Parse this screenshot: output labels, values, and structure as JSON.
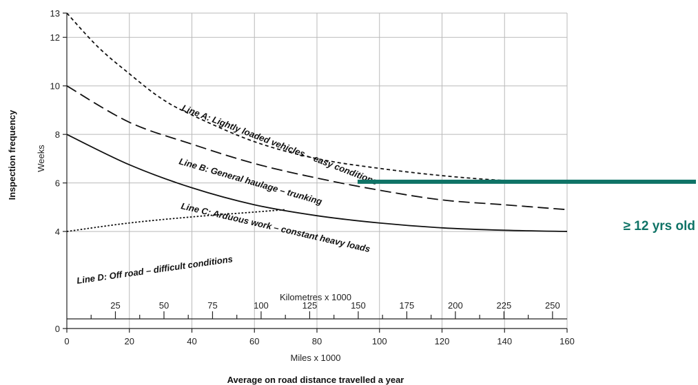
{
  "chart_data": {
    "type": "line",
    "ylabel": "Inspection frequency",
    "yunit": "Weeks",
    "xlabel": "Average on road distance travelled a year",
    "x_miles_label": "Miles x 1000",
    "x_km_label": "Kilometres x 1000",
    "xlim": [
      0,
      160
    ],
    "ylim": [
      0,
      13
    ],
    "yticks": [
      "0",
      "4",
      "6",
      "8",
      "10",
      "12",
      "13"
    ],
    "xticks_miles": [
      "0",
      "20",
      "40",
      "60",
      "80",
      "100",
      "120",
      "140",
      "160"
    ],
    "xticks_km": [
      "25",
      "50",
      "75",
      "100",
      "125",
      "150",
      "175",
      "200",
      "225",
      "250"
    ],
    "grid": true,
    "series": [
      {
        "name": "Line A: Lightly loaded vehicles – easy conditions",
        "style": "short-dash",
        "x": [
          0,
          10,
          20,
          30,
          40,
          60,
          80,
          100,
          120,
          140,
          160
        ],
        "y": [
          13,
          11.6,
          10.5,
          9.5,
          8.8,
          7.7,
          7.0,
          6.6,
          6.3,
          6.1,
          6.0
        ]
      },
      {
        "name": "Line B: General haulage – trunking",
        "style": "long-dash",
        "x": [
          0,
          20,
          40,
          60,
          80,
          100,
          120,
          140,
          160
        ],
        "y": [
          10,
          8.5,
          7.6,
          6.8,
          6.2,
          5.7,
          5.3,
          5.1,
          4.9
        ]
      },
      {
        "name": "Line C: Arduous work – constant heavy loads",
        "style": "solid",
        "x": [
          0,
          20,
          40,
          60,
          80,
          100,
          120,
          140,
          160
        ],
        "y": [
          8,
          6.75,
          5.8,
          5.1,
          4.65,
          4.35,
          4.15,
          4.05,
          4.0
        ]
      },
      {
        "name": "Line D: Off road – difficult conditions",
        "style": "dotted",
        "x": [
          0,
          20,
          40,
          60,
          70
        ],
        "y": [
          4,
          4.35,
          4.6,
          4.8,
          4.9
        ]
      }
    ]
  },
  "annotation": {
    "text": "≥ 12 yrs old",
    "y": 6.05,
    "x_start": 93,
    "color": "#0f7366"
  }
}
